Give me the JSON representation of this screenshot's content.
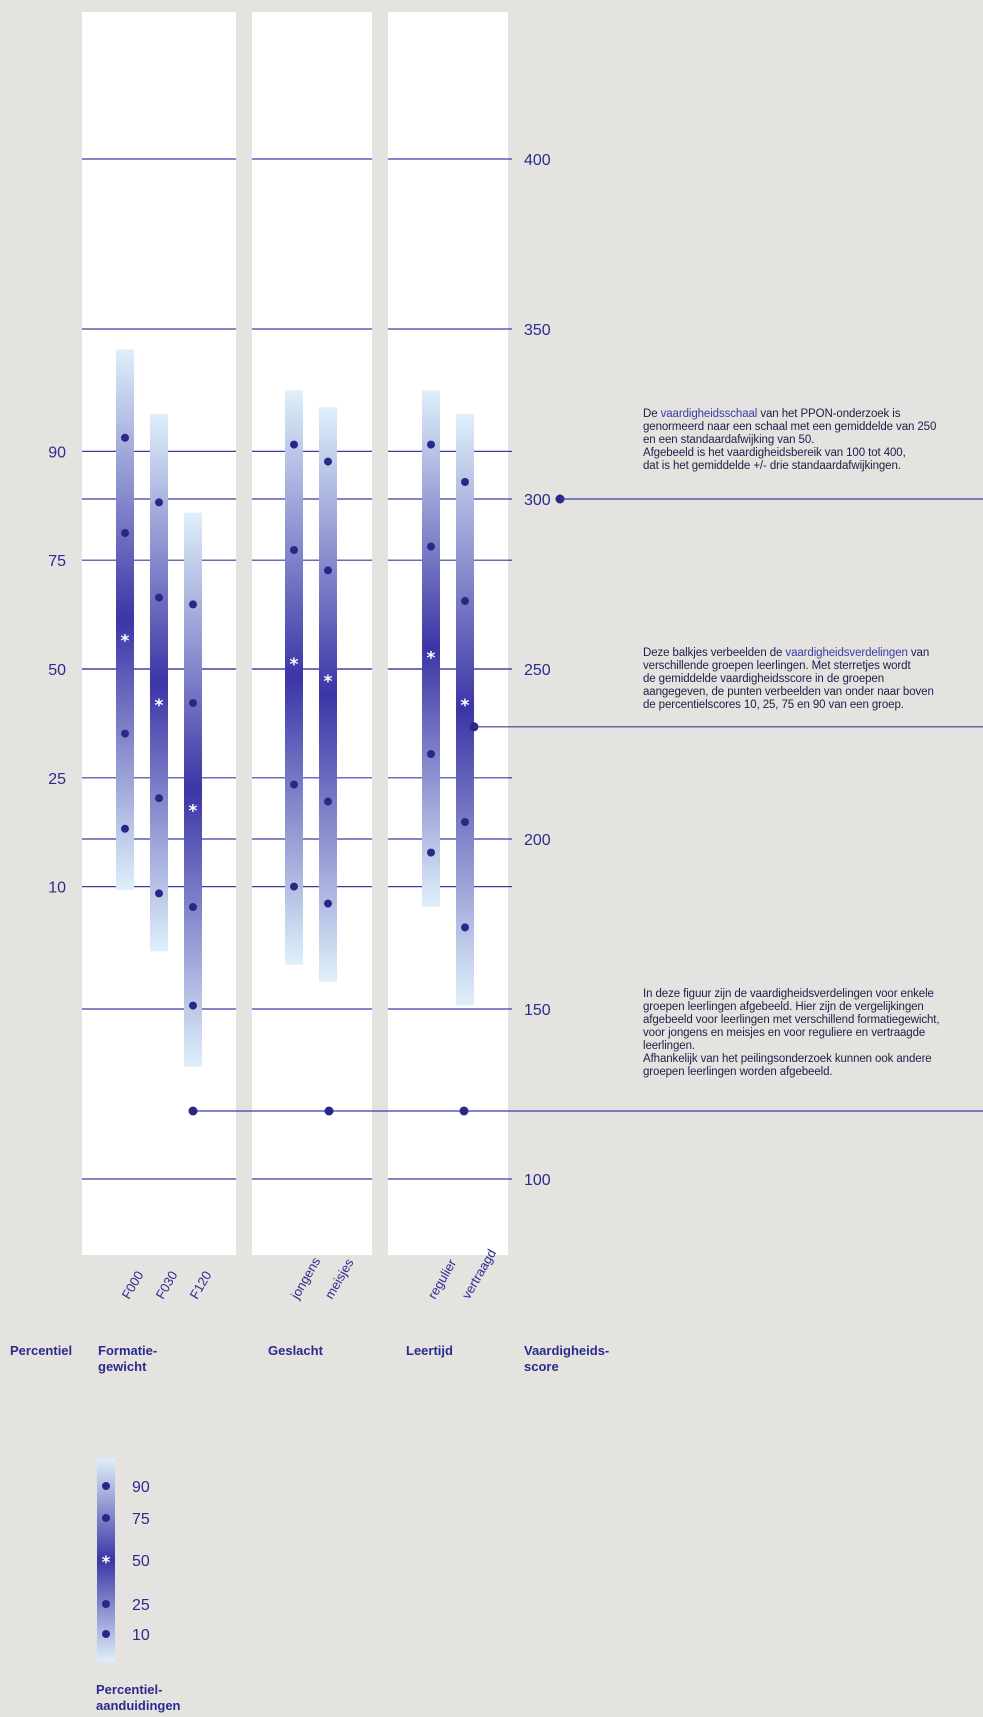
{
  "chart_data": {
    "type": "bar",
    "subtype": "percentile-range-bars",
    "y_axis": {
      "label": "Vaardigheids-\nscore",
      "ticks": [
        100,
        150,
        200,
        250,
        300,
        350,
        400
      ],
      "range": [
        80,
        445
      ]
    },
    "percentile_axis": {
      "label": "Percentiel",
      "ticks": [
        10,
        25,
        50,
        75,
        90
      ],
      "scores": {
        "10": 186,
        "25": 218,
        "50": 250,
        "75": 282,
        "90": 314
      }
    },
    "panels": [
      {
        "label": "Formatie-\ngewicht",
        "groups": [
          {
            "name": "F000",
            "range": [
              185,
              344
            ],
            "p10": 203,
            "p25": 231,
            "mean": 259,
            "p75": 290,
            "p90": 318
          },
          {
            "name": "F030",
            "range": [
              167,
              325
            ],
            "p10": 184,
            "p25": 212,
            "mean": 240,
            "p75": 271,
            "p90": 299
          },
          {
            "name": "F120",
            "range": [
              133,
              296
            ],
            "p10": 151,
            "p25": 180,
            "mean": 209,
            "p75": 240,
            "p90": 269
          }
        ]
      },
      {
        "label": "Geslacht",
        "groups": [
          {
            "name": "jongens",
            "range": [
              163,
              332
            ],
            "p10": 186,
            "p25": 216,
            "mean": 252,
            "p75": 285,
            "p90": 316
          },
          {
            "name": "meisjes",
            "range": [
              158,
              327
            ],
            "p10": 181,
            "p25": 211,
            "mean": 247,
            "p75": 279,
            "p90": 311
          }
        ]
      },
      {
        "label": "Leertijd",
        "groups": [
          {
            "name": "regulier",
            "range": [
              180,
              332
            ],
            "p10": 196,
            "p25": 225,
            "mean": 254,
            "p75": 286,
            "p90": 316
          },
          {
            "name": "vertraagd",
            "range": [
              151,
              325
            ],
            "p10": 174,
            "p25": 205,
            "mean": 240,
            "p75": 270,
            "p90": 305
          }
        ]
      }
    ],
    "reference_score": 120,
    "annotation_lines": [
      300,
      233,
      120
    ]
  },
  "legend": {
    "title": "Percentiel-\naanduidingen",
    "items": [
      "90",
      "75",
      "50",
      "25",
      "10"
    ]
  },
  "notes": {
    "note1": {
      "lines": [
        [
          {
            "t": "De "
          },
          {
            "t": "vaardigheidsschaal",
            "hl": true
          },
          {
            "t": " van het PPON-onderzoek is"
          }
        ],
        [
          {
            "t": "genormeerd naar een schaal met een gemiddelde van 250"
          }
        ],
        [
          {
            "t": "en een standaardafwijking van 50."
          }
        ],
        [
          {
            "t": "Afgebeeld is het vaardigheidsbereik van 100 tot 400,"
          }
        ],
        [
          {
            "t": "dat is het gemiddelde +/- drie standaardafwijkingen."
          }
        ]
      ]
    },
    "note2": {
      "lines": [
        [
          {
            "t": "Deze balkjes verbeelden de "
          },
          {
            "t": "vaardigheidsverdelingen",
            "hl": true
          },
          {
            "t": " van"
          }
        ],
        [
          {
            "t": "verschillende groepen leerlingen. Met sterretjes wordt"
          }
        ],
        [
          {
            "t": "de gemiddelde vaardigheidsscore in de groepen"
          }
        ],
        [
          {
            "t": "aangegeven, de punten verbeelden van onder naar boven"
          }
        ],
        [
          {
            "t": "de percentielscores 10, 25, 75 en 90 van een groep."
          }
        ]
      ]
    },
    "note3": {
      "lines": [
        [
          {
            "t": "In deze figuur zijn de vaardigheidsverdelingen voor enkele"
          }
        ],
        [
          {
            "t": "groepen leerlingen afgebeeld. Hier zijn de vergelijkingen"
          }
        ],
        [
          {
            "t": "afgebeeld voor leerlingen met verschillend formatiegewicht,"
          }
        ],
        [
          {
            "t": "voor jongens en meisjes en voor reguliere en vertraagde"
          }
        ],
        [
          {
            "t": "leerlingen."
          }
        ],
        [
          {
            "t": "Afhankelijk van het peilingsonderzoek kunnen ook andere"
          }
        ],
        [
          {
            "t": "groepen leerlingen worden afgebeeld."
          }
        ]
      ]
    }
  },
  "colors": {
    "background": "#e4e3df",
    "panel": "#ffffff",
    "axis_text": "#2b2b8f",
    "line": "#3b3ba3",
    "bar_light": "#dff0fa",
    "bar_dark": "#3b35a6",
    "dot": "#2a2887",
    "note_text": "#1f1d4a"
  }
}
